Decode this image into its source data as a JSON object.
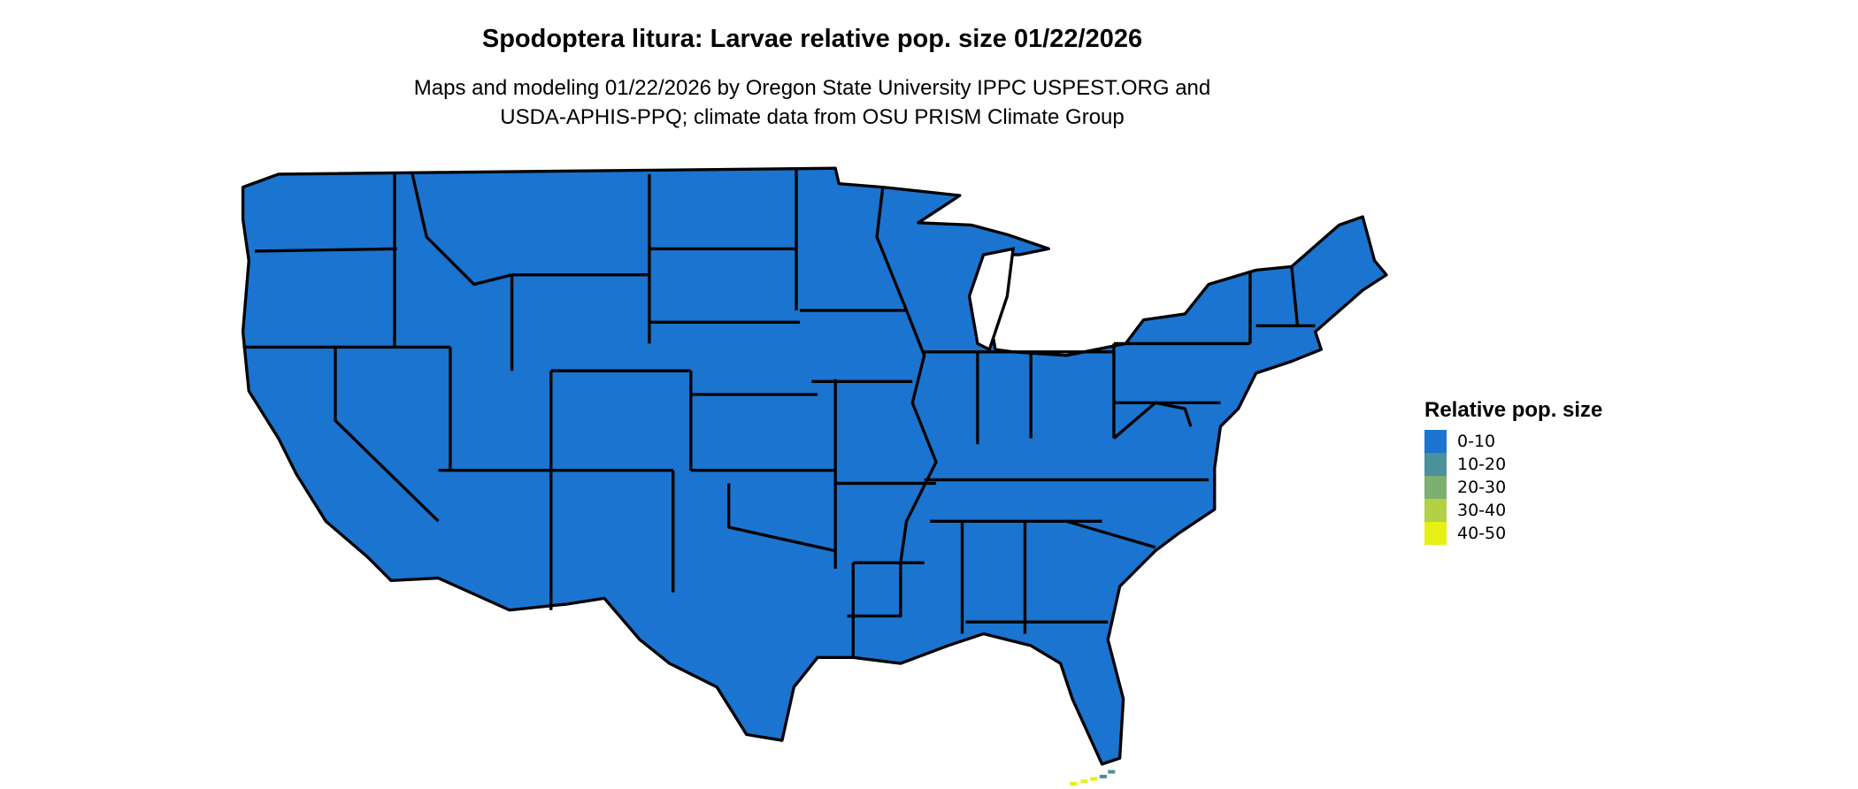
{
  "title": "Spodoptera litura: Larvae relative pop. size 01/22/2026",
  "subtitle_line1": "Maps and modeling 01/22/2026 by Oregon State University IPPC USPEST.ORG and",
  "subtitle_line2": "USDA-APHIS-PPQ; climate data from OSU PRISM Climate Group",
  "legend": {
    "title": "Relative pop. size",
    "items": [
      {
        "label": "0-10",
        "color": "#1B74CF"
      },
      {
        "label": "10-20",
        "color": "#4A919B"
      },
      {
        "label": "20-30",
        "color": "#7DAF72"
      },
      {
        "label": "30-40",
        "color": "#B2D144"
      },
      {
        "label": "40-50",
        "color": "#E6F016"
      }
    ]
  },
  "map": {
    "fill_color": "#1B74CF",
    "border_color": "#000000",
    "hotspot_region": "Florida Keys",
    "hotspot_classes": [
      "10-20",
      "40-50"
    ]
  }
}
